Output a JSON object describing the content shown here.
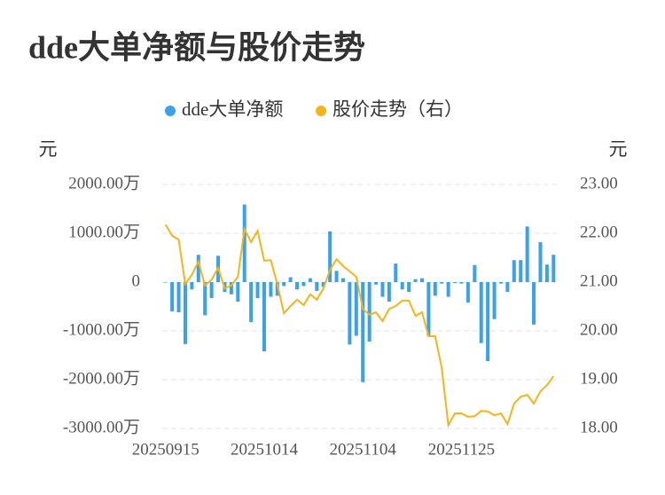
{
  "chart_data": {
    "type": "combo",
    "title": "dde大单净额与股价走势",
    "y_axis_label": "元",
    "y2_axis_label": "元",
    "categories": [
      "20250915",
      null,
      null,
      null,
      null,
      null,
      null,
      null,
      null,
      null,
      null,
      null,
      null,
      null,
      null,
      "20251014",
      null,
      null,
      null,
      null,
      null,
      null,
      null,
      null,
      null,
      null,
      null,
      null,
      null,
      null,
      "20251104",
      null,
      null,
      null,
      null,
      null,
      null,
      null,
      null,
      null,
      null,
      null,
      null,
      null,
      null,
      "20251125",
      null,
      null,
      null,
      null,
      null,
      null,
      null,
      null,
      null,
      null,
      null,
      null,
      null,
      null
    ],
    "series": [
      {
        "name": "dde大单净额",
        "type": "bar",
        "color": "#3ba1e8",
        "values": [
          -10,
          -600,
          -620,
          -1270,
          -150,
          560,
          -680,
          -330,
          540,
          -200,
          -250,
          -400,
          1590,
          -820,
          -330,
          -1420,
          -300,
          -280,
          -80,
          100,
          -150,
          -80,
          80,
          -180,
          -100,
          1040,
          230,
          80,
          -1280,
          -1100,
          -2050,
          -1220,
          -50,
          -300,
          -400,
          380,
          -150,
          -200,
          60,
          80,
          -1100,
          -280,
          -30,
          -300,
          -20,
          -30,
          -420,
          350,
          -1250,
          -1620,
          -760,
          -30,
          -200,
          450,
          450,
          1140,
          -870,
          820,
          360,
          560
        ]
      },
      {
        "name": "股价走势（右）",
        "type": "line",
        "axis": "y2",
        "color": "#f5b41a",
        "values": [
          22.18,
          21.95,
          21.87,
          20.96,
          21.15,
          21.42,
          20.93,
          21.05,
          21.29,
          20.87,
          20.93,
          21.11,
          22.09,
          21.82,
          22.05,
          21.44,
          21.45,
          20.96,
          20.36,
          20.51,
          20.64,
          20.53,
          20.75,
          20.64,
          20.87,
          21.25,
          21.47,
          21.33,
          21.22,
          21.11,
          20.45,
          20.33,
          20.38,
          20.2,
          20.45,
          20.51,
          20.62,
          20.62,
          20.31,
          20.38,
          19.89,
          19.89,
          19.24,
          18.07,
          18.31,
          18.31,
          18.24,
          18.25,
          18.36,
          18.35,
          18.27,
          18.31,
          18.09,
          18.51,
          18.65,
          18.69,
          18.51,
          18.76,
          18.89,
          19.07
        ]
      }
    ],
    "ylim": [
      -3000,
      2000
    ],
    "yticks": [
      {
        "value": -3000,
        "label": "-3000.00万"
      },
      {
        "value": -2000,
        "label": "-2000.00万"
      },
      {
        "value": -1000,
        "label": "-1000.00万"
      },
      0,
      {
        "value": 1000,
        "label": "1000.00万"
      },
      {
        "value": 2000,
        "label": "2000.00万"
      }
    ],
    "y2lim": [
      18,
      23
    ],
    "y2ticks": [
      {
        "value": 18,
        "label": "18.00"
      },
      {
        "value": 19,
        "label": "19.00"
      },
      {
        "value": 20,
        "label": "20.00"
      },
      {
        "value": 21,
        "label": "21.00"
      },
      {
        "value": 22,
        "label": "22.00"
      },
      {
        "value": 23,
        "label": "23.00"
      }
    ],
    "grid": true
  }
}
